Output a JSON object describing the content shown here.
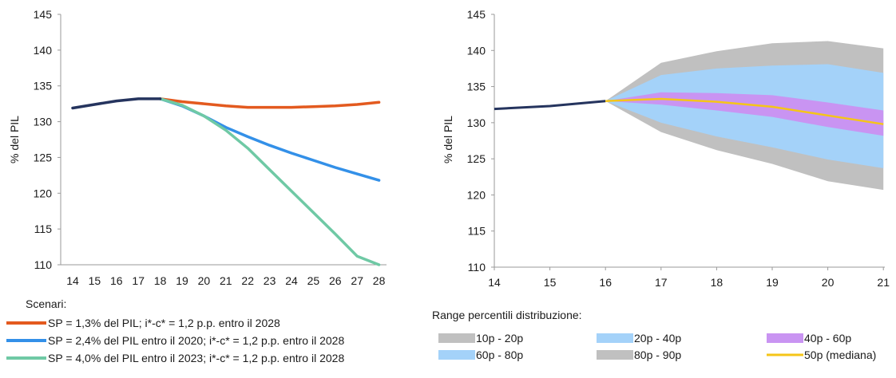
{
  "chart_data": [
    {
      "type": "line",
      "ylabel": "% del PIL",
      "ylim": [
        110,
        145
      ],
      "yticks": [
        110,
        115,
        120,
        125,
        130,
        135,
        140,
        145
      ],
      "x": [
        "14",
        "15",
        "16",
        "17",
        "18",
        "19",
        "20",
        "21",
        "22",
        "23",
        "24",
        "25",
        "26",
        "27",
        "28"
      ],
      "grid": false,
      "series": [
        {
          "role": "history",
          "color": "#25345e",
          "x": [
            "14",
            "15",
            "16",
            "17",
            "18"
          ],
          "values": [
            131.9,
            132.4,
            132.9,
            133.2,
            133.2
          ]
        },
        {
          "name": "SP = 1,3% del PIL; i*-c* = 1,2 p.p. entro il 2028",
          "color": "#e35a1f",
          "x": [
            "18",
            "19",
            "20",
            "21",
            "22",
            "23",
            "24",
            "25",
            "26",
            "27",
            "28"
          ],
          "values": [
            133.2,
            132.8,
            132.5,
            132.2,
            132.0,
            132.0,
            132.0,
            132.1,
            132.2,
            132.4,
            132.7
          ]
        },
        {
          "name": "SP = 2,4% del PIL entro il 2020; i*-c* = 1,2 p.p. entro il 2028",
          "color": "#3390e8",
          "x": [
            "18",
            "19",
            "20",
            "21",
            "22",
            "23",
            "24",
            "25",
            "26",
            "27",
            "28"
          ],
          "values": [
            133.2,
            132.2,
            130.8,
            129.2,
            127.9,
            126.7,
            125.6,
            124.6,
            123.6,
            122.7,
            121.8
          ]
        },
        {
          "name": "SP = 4,0% del PIL entro il 2023; i*-c* = 1,2 p.p. entro il 2028",
          "color": "#6fc9a5",
          "x": [
            "18",
            "19",
            "20",
            "21",
            "22",
            "23",
            "24",
            "25",
            "26",
            "27",
            "28"
          ],
          "values": [
            133.2,
            132.3,
            130.8,
            128.8,
            126.3,
            123.3,
            120.3,
            117.3,
            114.3,
            111.2,
            110.0
          ]
        }
      ],
      "legend_title": "Scenari:"
    },
    {
      "type": "area",
      "ylabel": "% del PIL",
      "ylim": [
        110,
        145
      ],
      "yticks": [
        110,
        115,
        120,
        125,
        130,
        135,
        140,
        145
      ],
      "x": [
        "14",
        "15",
        "16",
        "17",
        "18",
        "19",
        "20",
        "21"
      ],
      "grid": false,
      "history": {
        "color": "#25345e",
        "x": [
          "14",
          "15",
          "16"
        ],
        "values": [
          131.9,
          132.3,
          133.0
        ]
      },
      "fan_x": [
        "16",
        "17",
        "18",
        "19",
        "20",
        "21"
      ],
      "percentiles": {
        "p10": [
          133.0,
          128.7,
          126.2,
          124.3,
          121.9,
          120.7
        ],
        "p20": [
          133.0,
          130.0,
          128.1,
          126.6,
          124.9,
          123.7
        ],
        "p40": [
          133.0,
          132.5,
          131.7,
          130.8,
          129.4,
          128.2
        ],
        "p50": [
          133.0,
          133.3,
          132.9,
          132.2,
          131.0,
          129.8
        ],
        "p60": [
          133.0,
          134.2,
          134.1,
          133.8,
          132.8,
          131.7
        ],
        "p80": [
          133.0,
          136.6,
          137.5,
          137.9,
          138.1,
          136.9
        ],
        "p90": [
          133.0,
          138.3,
          139.9,
          141.0,
          141.3,
          140.3
        ]
      },
      "legend_title": "Range percentili distribuzione:",
      "legend": [
        {
          "label": "10p - 20p",
          "color": "#c0c0c0",
          "kind": "band"
        },
        {
          "label": "20p - 40p",
          "color": "#a4d2f9",
          "kind": "band"
        },
        {
          "label": "40p - 60p",
          "color": "#c994f2",
          "kind": "band"
        },
        {
          "label": "60p - 80p",
          "color": "#a4d2f9",
          "kind": "band"
        },
        {
          "label": "80p - 90p",
          "color": "#c0c0c0",
          "kind": "band"
        },
        {
          "label": "50p (mediana)",
          "color": "#f5c518",
          "kind": "line"
        }
      ]
    }
  ]
}
